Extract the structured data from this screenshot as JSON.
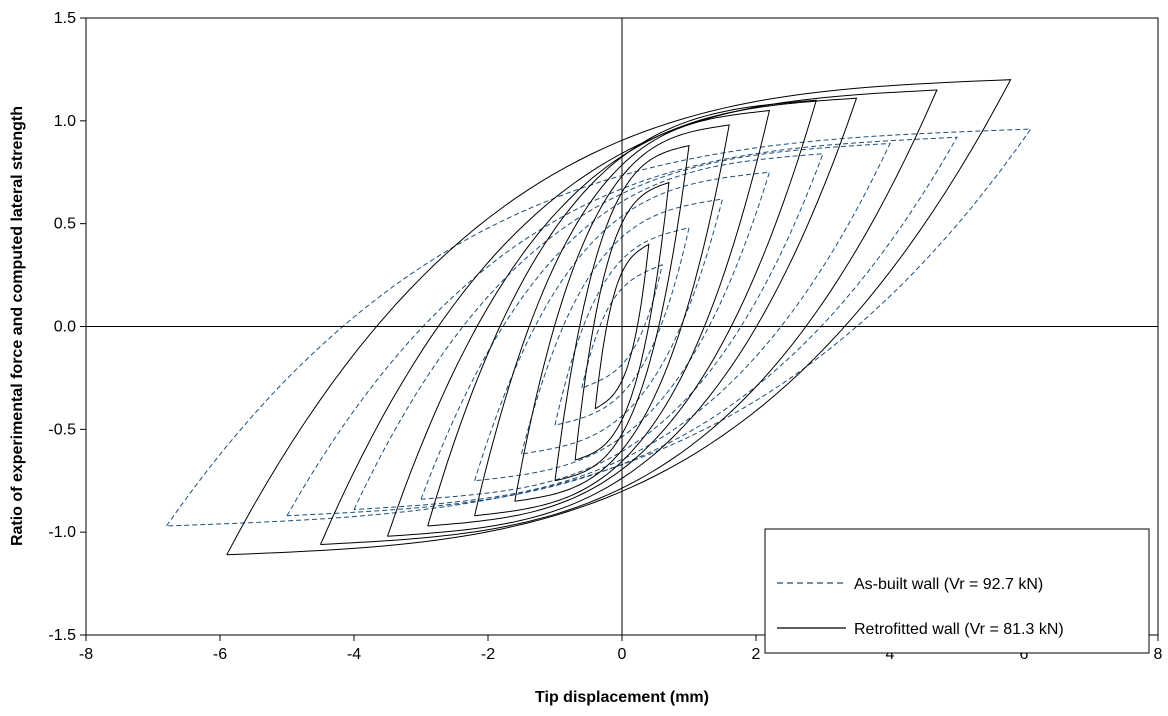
{
  "chart_data": {
    "type": "line",
    "title": "",
    "xlabel": "Tip displacement (mm)",
    "ylabel": "Ratio of experimental force and computed lateral strength",
    "xlim": [
      -8,
      8
    ],
    "ylim": [
      -1.5,
      1.5
    ],
    "x_ticks": [
      "-8",
      "-6",
      "-4",
      "-2",
      "0",
      "2",
      "4",
      "6",
      "8"
    ],
    "y_ticks": [
      "-1.5",
      "-1.0",
      "-0.5",
      "0.0",
      "0.5",
      "1.0",
      "1.5"
    ],
    "grid": false,
    "legend_position": "bottom-right",
    "series": [
      {
        "name": "As-built wall (Vr = 92.7 kN)",
        "style": "dashed",
        "color": "#1f4e79",
        "cycles": [
          {
            "x_max": 0.6,
            "y_max": 0.3,
            "x_min": -0.6,
            "y_min": -0.3
          },
          {
            "x_max": 1.0,
            "y_max": 0.48,
            "x_min": -1.0,
            "y_min": -0.48
          },
          {
            "x_max": 1.5,
            "y_max": 0.62,
            "x_min": -1.5,
            "y_min": -0.62
          },
          {
            "x_max": 2.2,
            "y_max": 0.75,
            "x_min": -2.2,
            "y_min": -0.75
          },
          {
            "x_max": 3.0,
            "y_max": 0.84,
            "x_min": -3.0,
            "y_min": -0.84
          },
          {
            "x_max": 4.0,
            "y_max": 0.89,
            "x_min": -4.0,
            "y_min": -0.89
          },
          {
            "x_max": 5.0,
            "y_max": 0.92,
            "x_min": -5.0,
            "y_min": -0.92
          },
          {
            "x_max": 6.1,
            "y_max": 0.96,
            "x_min": -6.8,
            "y_min": -0.97
          }
        ]
      },
      {
        "name": "Retrofitted wall (Vr = 81.3 kN)",
        "style": "solid",
        "color": "#000000",
        "cycles": [
          {
            "x_max": 0.4,
            "y_max": 0.4,
            "x_min": -0.4,
            "y_min": -0.4
          },
          {
            "x_max": 0.7,
            "y_max": 0.7,
            "x_min": -0.7,
            "y_min": -0.65
          },
          {
            "x_max": 1.0,
            "y_max": 0.88,
            "x_min": -1.0,
            "y_min": -0.75
          },
          {
            "x_max": 1.6,
            "y_max": 0.98,
            "x_min": -1.6,
            "y_min": -0.85
          },
          {
            "x_max": 2.2,
            "y_max": 1.05,
            "x_min": -2.2,
            "y_min": -0.92
          },
          {
            "x_max": 2.9,
            "y_max": 1.1,
            "x_min": -2.9,
            "y_min": -0.97
          },
          {
            "x_max": 3.5,
            "y_max": 1.11,
            "x_min": -3.5,
            "y_min": -1.02
          },
          {
            "x_max": 4.7,
            "y_max": 1.15,
            "x_min": -4.5,
            "y_min": -1.06
          },
          {
            "x_max": 5.8,
            "y_max": 1.2,
            "x_min": -5.9,
            "y_min": -1.11
          }
        ]
      }
    ]
  }
}
